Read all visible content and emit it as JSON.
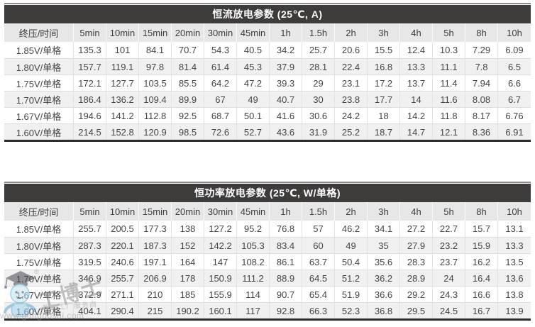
{
  "colors": {
    "title_bar_bg": "#3e3b3b",
    "header_row_bg": "#e8e7e7",
    "alt_row_bg": "#f1f0f0",
    "bottom_border": "#2d2b2b",
    "text": "#454545"
  },
  "tables": [
    {
      "title": "恒流放电参数 (25℃, A)",
      "headers": [
        "终压/时间",
        "5min",
        "10min",
        "15min",
        "20min",
        "30min",
        "45min",
        "1h",
        "1.5h",
        "2h",
        "3h",
        "4h",
        "5h",
        "8h",
        "10h"
      ],
      "rows": [
        {
          "label": "1.85V/单格",
          "values": [
            "135.3",
            "101",
            "84.1",
            "70.7",
            "54.3",
            "40.5",
            "34.2",
            "25.7",
            "20.6",
            "15.5",
            "12.4",
            "10.3",
            "7.29",
            "6.09"
          ]
        },
        {
          "label": "1.80V/单格",
          "values": [
            "157.7",
            "119.1",
            "97.8",
            "81.4",
            "61.4",
            "45.3",
            "37.9",
            "28.1",
            "22.4",
            "16.8",
            "13.3",
            "11.1",
            "7.8",
            "6.5"
          ]
        },
        {
          "label": "1.75V/单格",
          "values": [
            "172.1",
            "127.7",
            "103.5",
            "85.5",
            "64.2",
            "47.2",
            "39.3",
            "29",
            "23.1",
            "17.2",
            "13.7",
            "11.4",
            "7.94",
            "6.6"
          ]
        },
        {
          "label": "1.70V/单格",
          "values": [
            "186.4",
            "136.2",
            "109.4",
            "89.9",
            "67",
            "49",
            "40.7",
            "30",
            "23.8",
            "17.7",
            "14",
            "11.6",
            "8.08",
            "6.7"
          ]
        },
        {
          "label": "1.67V/单格",
          "values": [
            "194.6",
            "141.2",
            "112.8",
            "92.5",
            "68.7",
            "50.1",
            "41.6",
            "30.6",
            "24.2",
            "18",
            "14.2",
            "11.8",
            "8.17",
            "6.76"
          ]
        },
        {
          "label": "1.60V/单格",
          "values": [
            "214.5",
            "152.8",
            "120.9",
            "98.5",
            "72.6",
            "52.7",
            "43.6",
            "31.9",
            "25.2",
            "18.7",
            "14.7",
            "12.1",
            "8.36",
            "6.91"
          ]
        }
      ]
    },
    {
      "title": "恒功率放电参数 (25℃, W/单格)",
      "headers": [
        "终压/时间",
        "5min",
        "10min",
        "15min",
        "20min",
        "30min",
        "45min",
        "1h",
        "1.5h",
        "2h",
        "3h",
        "4h",
        "5h",
        "8h",
        "10h"
      ],
      "rows": [
        {
          "label": "1.85V/单格",
          "values": [
            "255.7",
            "200.5",
            "177.3",
            "138",
            "127.2",
            "95.2",
            "76.8",
            "57",
            "46.2",
            "34.1",
            "27.2",
            "22.7",
            "15.7",
            "13.1"
          ]
        },
        {
          "label": "1.80V/单格",
          "values": [
            "287.3",
            "220.1",
            "187.3",
            "152",
            "142.2",
            "105.3",
            "83.4",
            "60",
            "49",
            "35",
            "27.9",
            "23.2",
            "15.9",
            "13.3"
          ]
        },
        {
          "label": "1.75V/单格",
          "values": [
            "319.5",
            "240.6",
            "197.1",
            "164",
            "147",
            "108.2",
            "86.1",
            "63.7",
            "50.4",
            "35.6",
            "28.3",
            "23.7",
            "16.2",
            "13.5"
          ]
        },
        {
          "label": "1.70V/单格",
          "values": [
            "346.9",
            "255.7",
            "206.9",
            "178",
            "150.9",
            "111.2",
            "88.9",
            "64.5",
            "51.2",
            "36.2",
            "28.9",
            "24",
            "16.4",
            "13.6"
          ]
        },
        {
          "label": "1.67V/单格",
          "values": [
            "372.9",
            "271.1",
            "210",
            "185",
            "155.9",
            "114",
            "90.7",
            "65.4",
            "51.9",
            "36.6",
            "29.2",
            "24.3",
            "16.6",
            "13.8"
          ]
        },
        {
          "label": "1.60V/单格",
          "values": [
            "404.1",
            "290.4",
            "215",
            "190.2",
            "160.1",
            "117",
            "92.8",
            "66.3",
            "52.3",
            "36.8",
            "29.5",
            "24.5",
            "16.7",
            "13.9"
          ]
        }
      ]
    }
  ],
  "watermark": {
    "registered_mark": "®",
    "brand_chars": [
      "工",
      "博",
      "士"
    ],
    "tagline": "智能工厂服务商",
    "url": "www.gongboshi.com"
  }
}
